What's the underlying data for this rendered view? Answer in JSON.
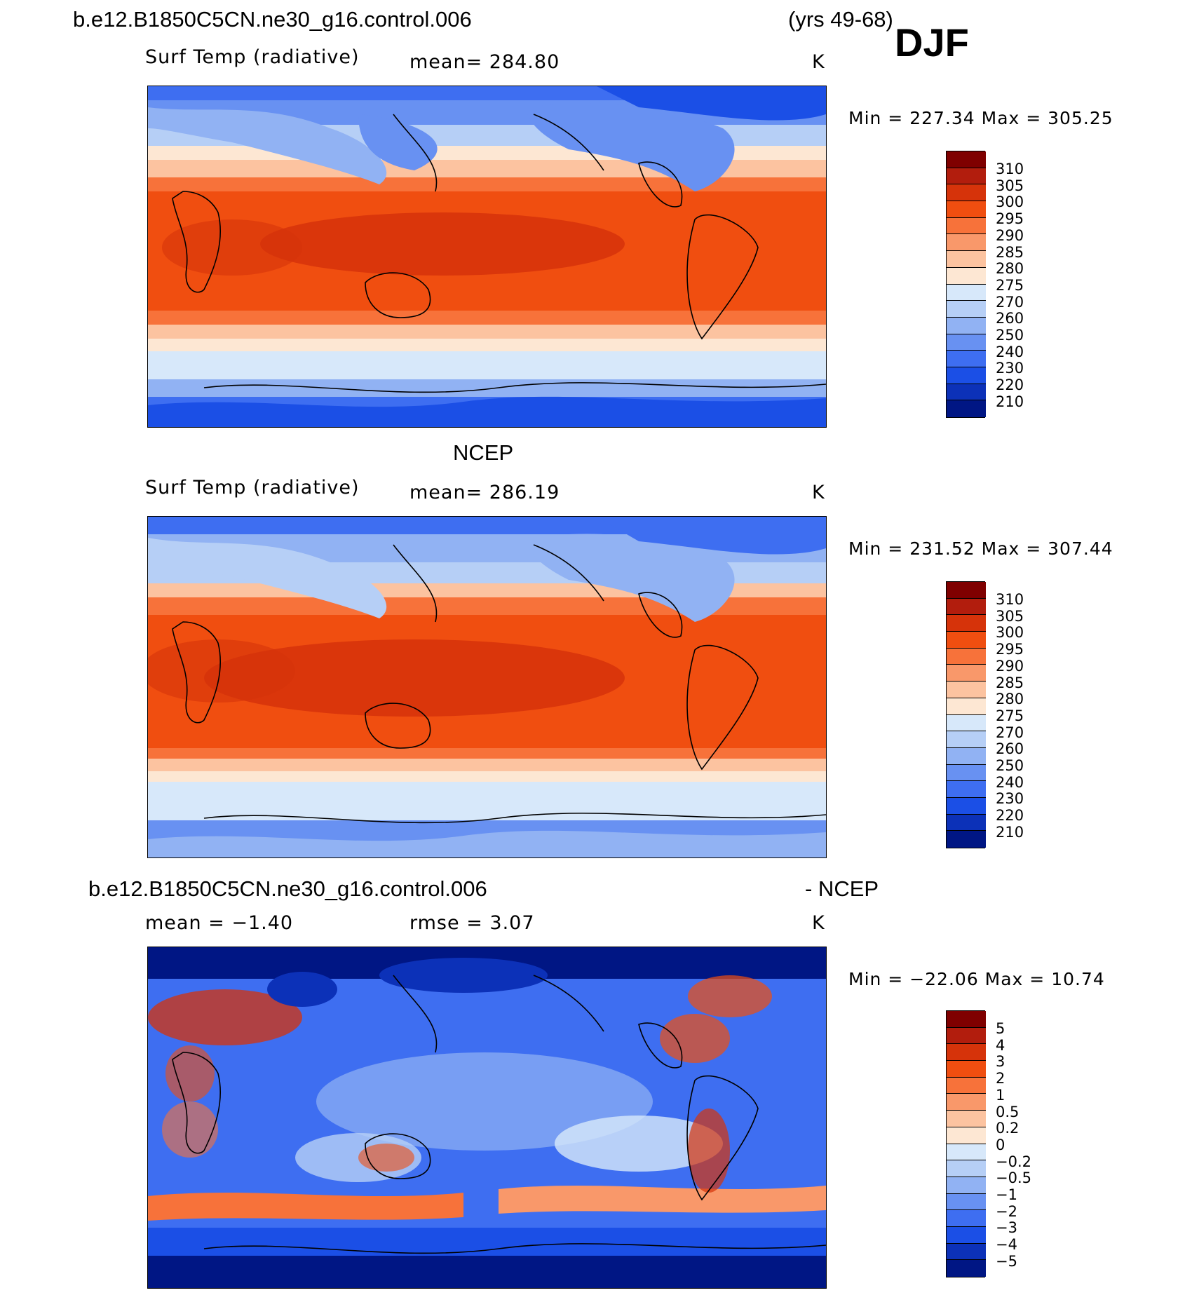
{
  "header": {
    "case_name": "b.e12.B1850C5CN.ne30_g16.control.006",
    "years": "(yrs 49-68)",
    "season": "DJF"
  },
  "panels": [
    {
      "title": "",
      "variable": "Surf Temp (radiative)",
      "stat": "mean=  284.80",
      "units": "K",
      "minmax": "Min  =  227.34  Max  =  305.25"
    },
    {
      "title": "NCEP",
      "variable": "Surf Temp (radiative)",
      "stat": "mean=  286.19",
      "units": "K",
      "minmax": "Min  =  231.52  Max  =  307.44"
    },
    {
      "title": "b.e12.B1850C5CN.ne30_g16.control.006",
      "title_right": "- NCEP",
      "variable": "mean  =    −1.40",
      "stat": "rmse  =     3.07",
      "units": "K",
      "minmax": "Min  =  −22.06  Max  =    10.74"
    }
  ],
  "colorbars": {
    "temperature": {
      "labels": [
        "310",
        "305",
        "300",
        "295",
        "290",
        "285",
        "280",
        "275",
        "270",
        "260",
        "250",
        "240",
        "230",
        "220",
        "210"
      ],
      "colors": [
        "#7f0000",
        "#b21d0d",
        "#d6330a",
        "#f04e10",
        "#f7723a",
        "#f9986a",
        "#fcc3a0",
        "#fde7d3",
        "#d7e8fa",
        "#b6cff6",
        "#91b2f3",
        "#6891f2",
        "#3e6ef1",
        "#1b4fe6",
        "#0c31b8",
        "#001684"
      ]
    },
    "difference": {
      "labels": [
        "5",
        "4",
        "3",
        "2",
        "1",
        "0.5",
        "0.2",
        "0",
        "−0.2",
        "−0.5",
        "−1",
        "−2",
        "−3",
        "−4",
        "−5"
      ],
      "colors": [
        "#7f0000",
        "#b21d0d",
        "#d6330a",
        "#f04e10",
        "#f7723a",
        "#f9986a",
        "#fcc3a0",
        "#fde7d3",
        "#d7e8fa",
        "#b6cff6",
        "#91b2f3",
        "#6891f2",
        "#3e6ef1",
        "#1b4fe6",
        "#0c31b8",
        "#001684"
      ]
    }
  }
}
